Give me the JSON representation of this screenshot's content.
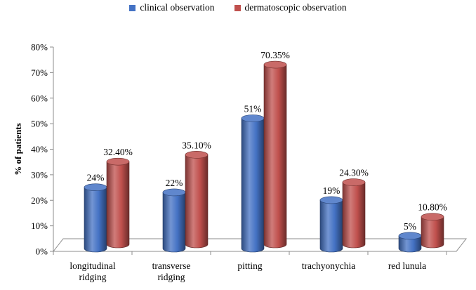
{
  "chart_data": {
    "type": "bar",
    "title": "",
    "xlabel": "",
    "ylabel": "% of patients",
    "ylim": [
      0,
      80
    ],
    "y_ticks": [
      "0%",
      "10%",
      "20%",
      "30%",
      "40%",
      "50%",
      "60%",
      "70%",
      "80%"
    ],
    "categories": [
      [
        "longitudinal",
        "ridging"
      ],
      [
        "transverse",
        "ridging"
      ],
      [
        "pitting"
      ],
      [
        "trachyonychia"
      ],
      [
        "red lunula"
      ]
    ],
    "series": [
      {
        "name": "clinical observation",
        "color": "#4472C4",
        "values": [
          24,
          22,
          51,
          19,
          5
        ],
        "labels": [
          "24%",
          "22%",
          "51%",
          "19%",
          "5%"
        ]
      },
      {
        "name": "dermatoscopic observation",
        "color": "#C0504D",
        "values": [
          32.4,
          35.1,
          70.35,
          24.3,
          10.8
        ],
        "labels": [
          "32.40%",
          "35.10%",
          "70.35%",
          "24.30%",
          "10.80%"
        ]
      }
    ],
    "legend_position": "top-center",
    "grid": false,
    "style": "3d-cylinder"
  }
}
